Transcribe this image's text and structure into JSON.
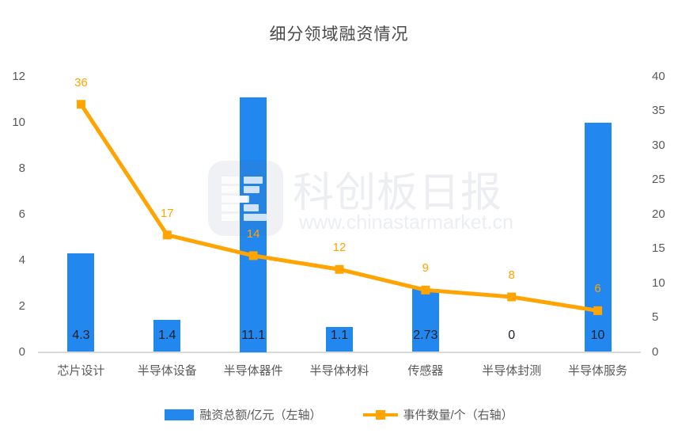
{
  "title": "细分领域融资情况",
  "watermark": {
    "brand": "科创板日报",
    "url": "www.chinastarmarket.cn"
  },
  "colors": {
    "bar": "#2287EE",
    "line": "#FFA400",
    "axis_text": "#595959",
    "bar_label_text": "#1c2026",
    "title_text": "#4a4a4a",
    "baseline": "#d9d9d9",
    "watermark_text": "#eceef2"
  },
  "legend": {
    "items": [
      {
        "icon": "bar-swatch",
        "label": "融资总额/亿元（左轴）"
      },
      {
        "icon": "line-swatch",
        "label": "事件数量/个（右轴）"
      }
    ]
  },
  "chart_data": {
    "type": "bar+line combo",
    "title": "细分领域融资情况",
    "categories": [
      "芯片设计",
      "半导体设备",
      "半导体器件",
      "半导体材料",
      "传感器",
      "半导体封测",
      "半导体服务"
    ],
    "series": [
      {
        "name": "融资总额/亿元（左轴）",
        "type": "bar",
        "axis": "left",
        "values": [
          4.3,
          1.4,
          11.1,
          1.1,
          2.73,
          0,
          10
        ],
        "labels": [
          "4.3",
          "1.4",
          "11.1",
          "1.1",
          "2.73",
          "0",
          "10"
        ]
      },
      {
        "name": "事件数量/个（右轴）",
        "type": "line",
        "axis": "right",
        "values": [
          36,
          17,
          14,
          12,
          9,
          8,
          6
        ],
        "labels": [
          "36",
          "17",
          "14",
          "12",
          "9",
          "8",
          "6"
        ]
      }
    ],
    "left_axis": {
      "range": [
        0,
        12
      ],
      "ticks": [
        0,
        2,
        4,
        6,
        8,
        10,
        12
      ]
    },
    "right_axis": {
      "range": [
        0,
        40
      ],
      "ticks": [
        0,
        5,
        10,
        15,
        20,
        25,
        30,
        35,
        40
      ]
    },
    "grid": false,
    "legend_position": "bottom"
  }
}
